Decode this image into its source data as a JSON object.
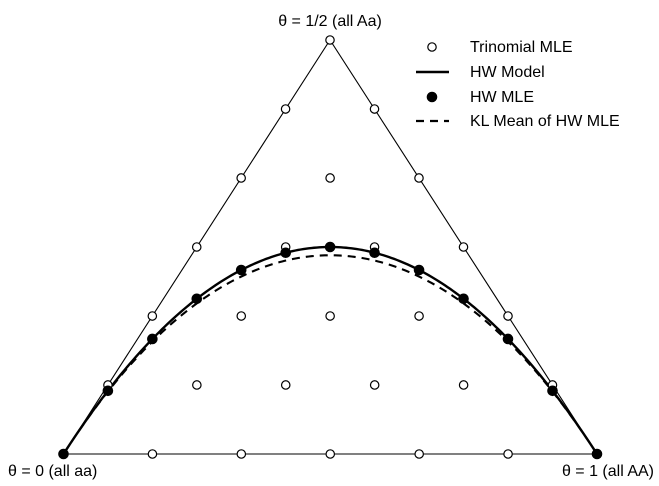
{
  "chart_data": {
    "type": "scatter",
    "coordinates": "ternary",
    "vertex_labels": {
      "top": "θ = 1/2 (all Aa)",
      "left": "θ = 0 (all aa)",
      "right": "θ = 1 (all AA)"
    },
    "grid_n": 6,
    "series": [
      {
        "name": "Trinomial MLE",
        "marker": "open-circle",
        "note": "all points (p_AA, p_Aa) with counts on a grid of n = 6",
        "points": [
          [
            0,
            0
          ],
          [
            0.1667,
            0
          ],
          [
            0.3333,
            0
          ],
          [
            0.5,
            0
          ],
          [
            0.6667,
            0
          ],
          [
            0.8333,
            0
          ],
          [
            1,
            0
          ],
          [
            0,
            0.1667
          ],
          [
            0.1667,
            0.1667
          ],
          [
            0.3333,
            0.1667
          ],
          [
            0.5,
            0.1667
          ],
          [
            0.6667,
            0.1667
          ],
          [
            0.8333,
            0.1667
          ],
          [
            0,
            0.3333
          ],
          [
            0.1667,
            0.3333
          ],
          [
            0.3333,
            0.3333
          ],
          [
            0.5,
            0.3333
          ],
          [
            0.6667,
            0.3333
          ],
          [
            0,
            0.5
          ],
          [
            0.1667,
            0.5
          ],
          [
            0.3333,
            0.5
          ],
          [
            0.5,
            0.5
          ],
          [
            0,
            0.6667
          ],
          [
            0.1667,
            0.6667
          ],
          [
            0.3333,
            0.6667
          ],
          [
            0,
            0.8333
          ],
          [
            0.1667,
            0.8333
          ],
          [
            0,
            1
          ]
        ]
      },
      {
        "name": "HW Model",
        "line": "solid",
        "note": "p_AA = θ², p_Aa = 2θ(1−θ), θ from 0 to 1"
      },
      {
        "name": "HW MLE",
        "marker": "filled-circle",
        "theta": [
          0,
          0.0833,
          0.1667,
          0.25,
          0.3333,
          0.4167,
          0.5,
          0.5833,
          0.6667,
          0.75,
          0.8333,
          0.9167,
          1
        ]
      },
      {
        "name": "KL Mean of HW MLE",
        "line": "dashed",
        "note": "curve slightly inside the HW model curve; peak heterozygote share about 0.46 at θ = 1/2"
      }
    ],
    "legend_position": "top-right",
    "grid": false
  },
  "colors": {
    "ink": "#000000",
    "background": "#ffffff"
  }
}
